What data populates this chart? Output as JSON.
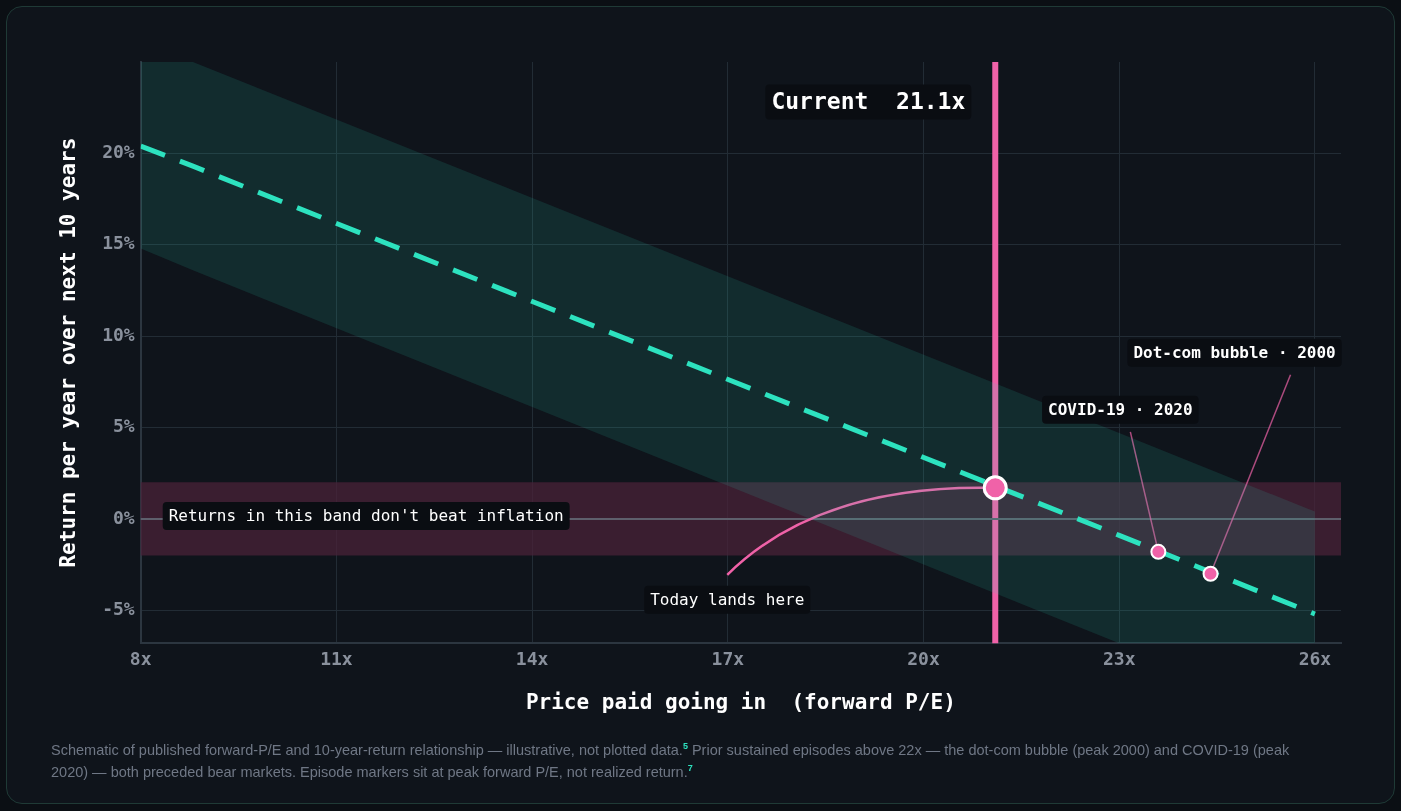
{
  "chart_data": {
    "type": "line",
    "xlabel": "Price paid going in  (forward P/E)",
    "ylabel": "Return per year over next 10 years",
    "xlim": [
      8,
      26.4
    ],
    "ylim": [
      -6.8,
      25
    ],
    "xticks": [
      {
        "value": 8,
        "label": "8x"
      },
      {
        "value": 11,
        "label": "11x"
      },
      {
        "value": 14,
        "label": "14x"
      },
      {
        "value": 17,
        "label": "17x"
      },
      {
        "value": 20,
        "label": "20x"
      },
      {
        "value": 23,
        "label": "23x"
      },
      {
        "value": 26,
        "label": "26x"
      }
    ],
    "yticks": [
      {
        "value": -5,
        "label": "-5%"
      },
      {
        "value": 0,
        "label": "0%"
      },
      {
        "value": 5,
        "label": "5%"
      },
      {
        "value": 10,
        "label": "10%"
      },
      {
        "value": 15,
        "label": "15%"
      },
      {
        "value": 20,
        "label": "20%"
      }
    ],
    "grid": true,
    "legend": false,
    "series": [
      {
        "color": "#2de2bf",
        "line_style": "dashed",
        "marker": "none",
        "x": [
          8,
          8.8,
          23,
          26
        ],
        "values": [
          20.4,
          19.3,
          -0.9,
          -5.2
        ],
        "lower": [
          14.8,
          13.6,
          -6.8,
          -6.8
        ],
        "upper": [
          25,
          25,
          4.7,
          0.4
        ]
      },
      {
        "type": "scatter",
        "color": "#f062a8",
        "marker": "circle",
        "x": [
          21.1
        ],
        "values": [
          1.7
        ]
      },
      {
        "type": "scatter",
        "color": "#f062a8",
        "marker": "circle",
        "x": [
          23.6,
          24.4
        ],
        "values": [
          -1.8,
          -3.0
        ]
      }
    ],
    "ref_lines": [
      {
        "axis": "x",
        "value": 21.1,
        "label": "Current  21.1x",
        "color": "#f062a8"
      },
      {
        "axis": "y",
        "value": 0,
        "label": null,
        "color": "#5e5f6c"
      }
    ],
    "bands": [
      {
        "axis": "y",
        "from": -2,
        "to": 2,
        "label": "Returns in this band don't beat inflation",
        "color": "#4a2238"
      }
    ],
    "annotations": [
      {
        "text": "Today lands here",
        "x": 21.1,
        "y": 1.7
      },
      {
        "text": "COVID-19 · 2020",
        "x": 23.6,
        "y": -1.8
      },
      {
        "text": "Dot-com bubble · 2000",
        "x": 24.4,
        "y": -3.0
      },
      "Schematic of published forward-P/E and 10-year-return relationship — illustrative, not plotted data.$^{5}$ Prior sustained episodes above 22x — the dot-com bubble (peak 2000) and COVID-19 (peak 2020) — both preceded bear markets. Episode markers sit at peak forward P/E, not realized return.$^{7}$"
    ]
  }
}
